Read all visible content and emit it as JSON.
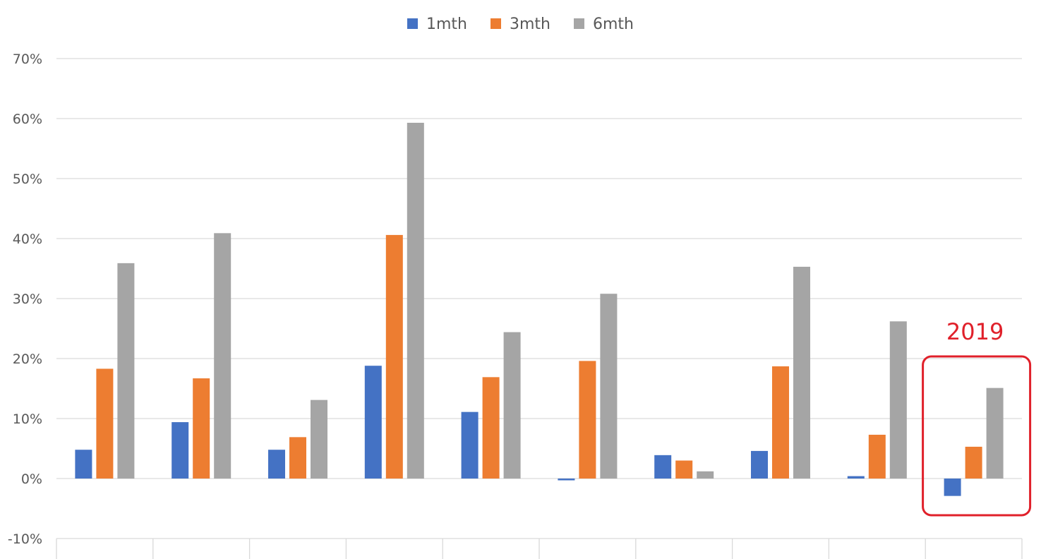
{
  "chart_data": {
    "type": "bar",
    "categories": [
      "",
      "",
      "",
      "",
      "",
      "",
      "",
      "",
      "",
      ""
    ],
    "series": [
      {
        "name": "1mth",
        "color": "#4472c4",
        "values": [
          4.8,
          9.4,
          4.8,
          18.8,
          11.1,
          -0.3,
          3.9,
          4.6,
          0.4,
          -2.9
        ]
      },
      {
        "name": "3mth",
        "color": "#ed7d31",
        "values": [
          18.3,
          16.7,
          6.9,
          40.6,
          16.9,
          19.6,
          3.0,
          18.7,
          7.3,
          5.3
        ]
      },
      {
        "name": "6mth",
        "color": "#a5a5a5",
        "values": [
          35.9,
          40.9,
          13.1,
          59.3,
          24.4,
          30.8,
          1.2,
          35.3,
          26.2,
          15.1
        ]
      }
    ],
    "ylim": [
      -10,
      70
    ],
    "yticks": [
      -10,
      0,
      10,
      20,
      30,
      40,
      50,
      60,
      70
    ],
    "ytick_labels": [
      "-10%",
      "0%",
      "10%",
      "20%",
      "30%",
      "40%",
      "50%",
      "60%",
      "70%"
    ],
    "grid": true,
    "legend_position": "top-center",
    "title": "",
    "xlabel": "",
    "ylabel": "",
    "annotation": {
      "text": "2019",
      "target_category_index": 9,
      "color": "#e0202a"
    }
  }
}
